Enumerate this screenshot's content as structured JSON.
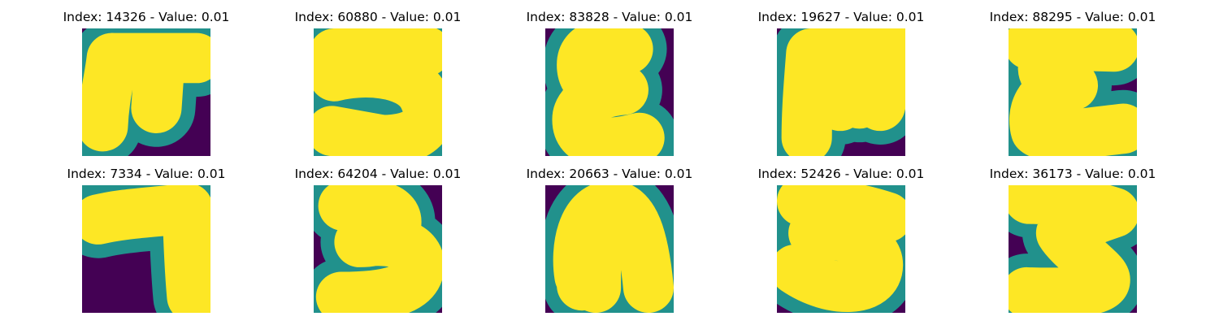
{
  "palette": {
    "background": "#440154",
    "edge": "#21918c",
    "stroke": "#fde725"
  },
  "panels": [
    {
      "title": "Index: 14326 - Value: 0.01",
      "glyph": "pi"
    },
    {
      "title": "Index: 60880 - Value: 0.01",
      "glyph": "five"
    },
    {
      "title": "Index: 83828 - Value: 0.01",
      "glyph": "epsilon"
    },
    {
      "title": "Index: 19627 - Value: 0.01",
      "glyph": "m"
    },
    {
      "title": "Index: 88295 - Value: 0.01",
      "glyph": "xi"
    },
    {
      "title": "Index: 7334 - Value: 0.01",
      "glyph": "seven"
    },
    {
      "title": "Index: 64204 - Value: 0.01",
      "glyph": "three"
    },
    {
      "title": "Index: 20663 - Value: 0.01",
      "glyph": "n"
    },
    {
      "title": "Index: 52426 - Value: 0.01",
      "glyph": "three-b"
    },
    {
      "title": "Index: 36173 - Value: 0.01",
      "glyph": "z-curve"
    }
  ]
}
